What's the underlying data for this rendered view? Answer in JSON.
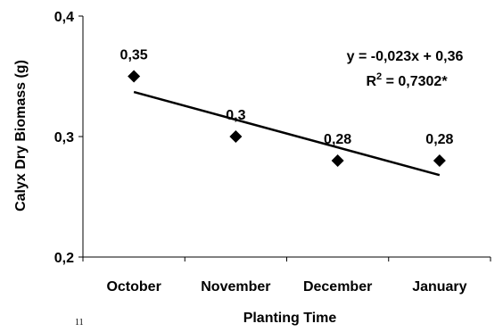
{
  "chart_data": {
    "type": "scatter",
    "title": "",
    "xlabel": "Planting Time",
    "ylabel": "Calyx Dry Biomass (g)",
    "categories": [
      "October",
      "November",
      "December",
      "January"
    ],
    "values": [
      0.35,
      0.3,
      0.28,
      0.28
    ],
    "data_labels": [
      "0,35",
      "0,3",
      "0,28",
      "0,28"
    ],
    "ylim": [
      0.2,
      0.4
    ],
    "yticks": [
      0.2,
      0.3,
      0.4
    ],
    "ytick_labels": [
      "0,2",
      "0,3",
      "0,4"
    ],
    "marker": "diamond",
    "marker_color": "#000000",
    "grid": false,
    "legend": "none",
    "trendline": {
      "type": "linear",
      "slope": -0.023,
      "intercept": 0.36,
      "x_start": 1,
      "x_end": 4,
      "equation_text": "y = -0,023x + 0,36",
      "r2_prefix": "R",
      "r2_superscript": "2",
      "r2_suffix": " = 0,7302*"
    }
  },
  "stray_mark": "11"
}
